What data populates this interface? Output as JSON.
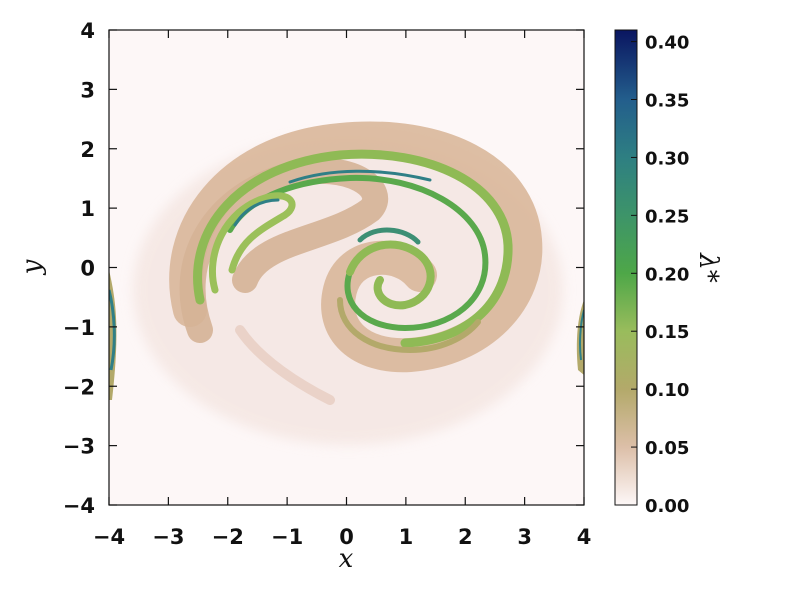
{
  "chart_data": {
    "type": "heatmap",
    "title": "",
    "xlabel": "x",
    "ylabel": "y",
    "xlim": [
      -4,
      4
    ],
    "ylim": [
      -4,
      4
    ],
    "x_ticks": [
      "−4",
      "−3",
      "−2",
      "−1",
      "0",
      "1",
      "2",
      "3",
      "4"
    ],
    "y_ticks": [
      "−4",
      "−3",
      "−2",
      "−1",
      "0",
      "1",
      "2",
      "3",
      "4"
    ],
    "x_tick_values": [
      -4,
      -3,
      -2,
      -1,
      0,
      1,
      2,
      3,
      4
    ],
    "y_tick_values": [
      -4,
      -3,
      -2,
      -1,
      0,
      1,
      2,
      3,
      4
    ],
    "grid": false,
    "colorbar": {
      "label": "λ*",
      "range": [
        0.0,
        0.41
      ],
      "tick_values": [
        0.0,
        0.05,
        0.1,
        0.15,
        0.2,
        0.25,
        0.3,
        0.35,
        0.4
      ],
      "ticks": [
        "0.00",
        "0.05",
        "0.10",
        "0.15",
        "0.20",
        "0.25",
        "0.30",
        "0.35",
        "0.40"
      ],
      "colormap_stops": [
        {
          "value": 0.0,
          "color": "#fdf7f7"
        },
        {
          "value": 0.05,
          "color": "#dcbfa8"
        },
        {
          "value": 0.1,
          "color": "#b3a96a"
        },
        {
          "value": 0.15,
          "color": "#99bc5c"
        },
        {
          "value": 0.2,
          "color": "#4ea748"
        },
        {
          "value": 0.25,
          "color": "#3d9469"
        },
        {
          "value": 0.3,
          "color": "#2e7f82"
        },
        {
          "value": 0.35,
          "color": "#235e8c"
        },
        {
          "value": 0.41,
          "color": "#0a1560"
        }
      ]
    },
    "structure": "double spiral (Kelvin-Helmholtz-like roll-up) centered near (0.5, -0.3), spanning x ≈ -3 to 3, y ≈ -2 to 2.6, with edge features at x = ±4 near y ≈ -1"
  }
}
